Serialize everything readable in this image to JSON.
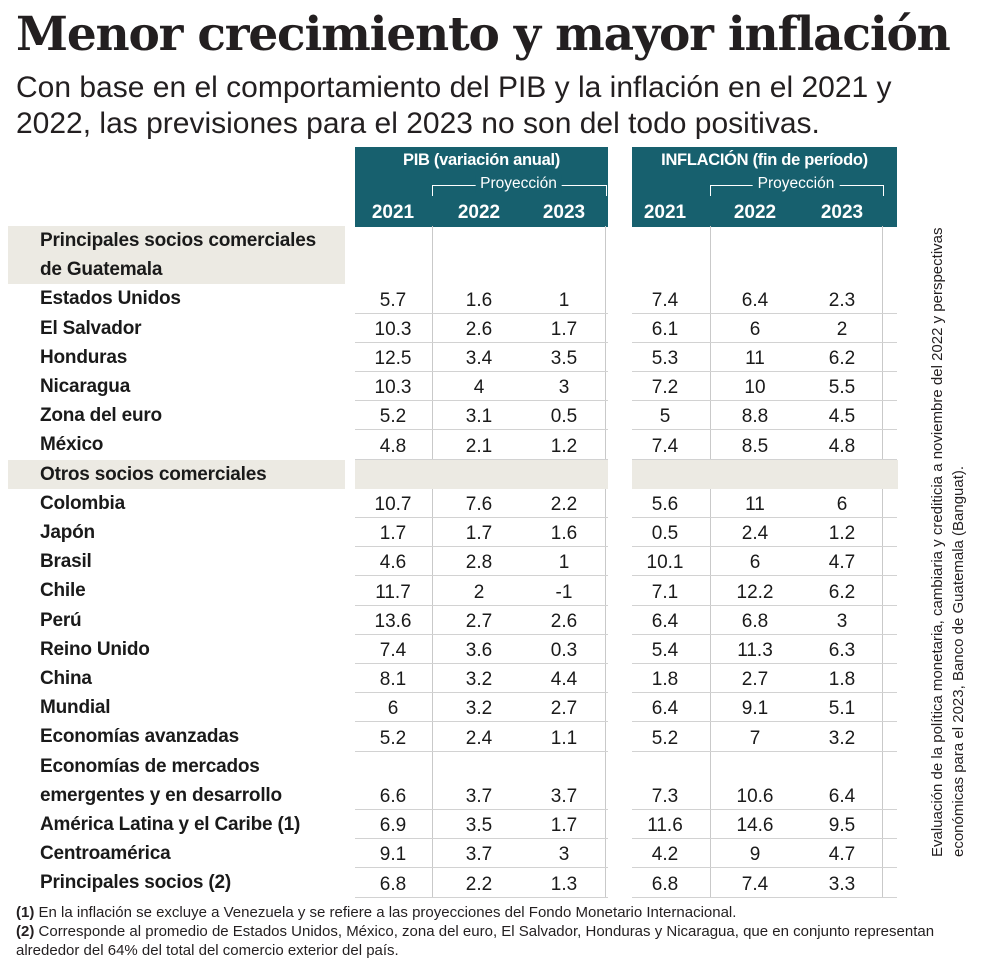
{
  "header": {
    "title": "Menor crecimiento y mayor inflación",
    "subtitle": "Con base en el comportamiento del PIB y la inflación en el 2021 y 2022, las previsiones para el 2023 no son del todo positivas."
  },
  "colors": {
    "header_bg": "#17606e",
    "section_bg": "#eceae3",
    "row_stripe": "#efefef"
  },
  "chart_data": {
    "type": "table",
    "groups": [
      {
        "title": "PIB (variación anual)",
        "projection_label": "Proyección",
        "years": [
          "2021",
          "2022",
          "2023"
        ]
      },
      {
        "title": "INFLACIÓN (fin de período)",
        "projection_label": "Proyección",
        "years": [
          "2021",
          "2022",
          "2023"
        ]
      }
    ],
    "sections": [
      {
        "title": "Principales socios comerciales de Guatemala",
        "rows": [
          {
            "label": "Estados Unidos",
            "pib": [
              "5.7",
              "1.6",
              "1"
            ],
            "inflacion": [
              "7.4",
              "6.4",
              "2.3"
            ]
          },
          {
            "label": "El Salvador",
            "pib": [
              "10.3",
              "2.6",
              "1.7"
            ],
            "inflacion": [
              "6.1",
              "6",
              "2"
            ]
          },
          {
            "label": "Honduras",
            "pib": [
              "12.5",
              "3.4",
              "3.5"
            ],
            "inflacion": [
              "5.3",
              "11",
              "6.2"
            ]
          },
          {
            "label": "Nicaragua",
            "pib": [
              "10.3",
              "4",
              "3"
            ],
            "inflacion": [
              "7.2",
              "10",
              "5.5"
            ]
          },
          {
            "label": "Zona del euro",
            "pib": [
              "5.2",
              "3.1",
              "0.5"
            ],
            "inflacion": [
              "5",
              "8.8",
              "4.5"
            ]
          },
          {
            "label": "México",
            "pib": [
              "4.8",
              "2.1",
              "1.2"
            ],
            "inflacion": [
              "7.4",
              "8.5",
              "4.8"
            ]
          }
        ]
      },
      {
        "title": "Otros socios comerciales",
        "rows": [
          {
            "label": "Colombia",
            "pib": [
              "10.7",
              "7.6",
              "2.2"
            ],
            "inflacion": [
              "5.6",
              "11",
              "6"
            ]
          },
          {
            "label": "Japón",
            "pib": [
              "1.7",
              "1.7",
              "1.6"
            ],
            "inflacion": [
              "0.5",
              "2.4",
              "1.2"
            ]
          },
          {
            "label": "Brasil",
            "pib": [
              "4.6",
              "2.8",
              "1"
            ],
            "inflacion": [
              "10.1",
              "6",
              "4.7"
            ]
          },
          {
            "label": "Chile",
            "pib": [
              "11.7",
              "2",
              "-1"
            ],
            "inflacion": [
              "7.1",
              "12.2",
              "6.2"
            ]
          },
          {
            "label": "Perú",
            "pib": [
              "13.6",
              "2.7",
              "2.6"
            ],
            "inflacion": [
              "6.4",
              "6.8",
              "3"
            ]
          },
          {
            "label": "Reino Unido",
            "pib": [
              "7.4",
              "3.6",
              "0.3"
            ],
            "inflacion": [
              "5.4",
              "11.3",
              "6.3"
            ]
          },
          {
            "label": "China",
            "pib": [
              "8.1",
              "3.2",
              "4.4"
            ],
            "inflacion": [
              "1.8",
              "2.7",
              "1.8"
            ]
          },
          {
            "label": "Mundial",
            "pib": [
              "6",
              "3.2",
              "2.7"
            ],
            "inflacion": [
              "6.4",
              "9.1",
              "5.1"
            ]
          },
          {
            "label": "Economías avanzadas",
            "pib": [
              "5.2",
              "2.4",
              "1.1"
            ],
            "inflacion": [
              "5.2",
              "7",
              "3.2"
            ]
          },
          {
            "label": "Economías de mercados emergentes y en desarrollo",
            "pib": [
              "6.6",
              "3.7",
              "3.7"
            ],
            "inflacion": [
              "7.3",
              "10.6",
              "6.4"
            ]
          },
          {
            "label": "América Latina y el Caribe (1)",
            "pib": [
              "6.9",
              "3.5",
              "1.7"
            ],
            "inflacion": [
              "11.6",
              "14.6",
              "9.5"
            ]
          },
          {
            "label": "Centroamérica",
            "pib": [
              "9.1",
              "3.7",
              "3"
            ],
            "inflacion": [
              "4.2",
              "9",
              "4.7"
            ]
          },
          {
            "label": "Principales socios (2)",
            "pib": [
              "6.8",
              "2.2",
              "1.3"
            ],
            "inflacion": [
              "6.8",
              "7.4",
              "3.3"
            ]
          }
        ]
      }
    ]
  },
  "footnotes": [
    {
      "mark": "(1)",
      "text": "En la inflación se excluye a Venezuela y se refiere a las proyecciones del Fondo Monetario Internacional."
    },
    {
      "mark": "(2)",
      "text": "Corresponde al promedio de Estados Unidos, México, zona del euro, El Salvador, Honduras y Nicaragua, que en conjunto representan alrededor del 64% del total del comercio exterior del país."
    }
  ],
  "source": "Evaluación de la política monetaria, cambiaria y crediticia a noviembre del 2022 y perspectivas económicas para el 2023, Banco de Guatemala (Banguat)."
}
